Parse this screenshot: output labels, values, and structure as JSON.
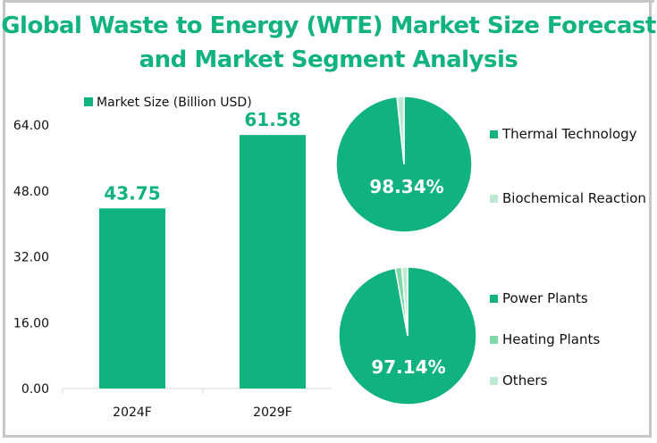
{
  "title_line1": "Global Waste to Energy (WTE) Market Size Forecast",
  "title_line2": "and Market Segment Analysis",
  "colors": {
    "primary": "#10b27f",
    "secondary": "#7fd8a8",
    "tertiary": "#bde8d2",
    "axis": "#d9d9d9",
    "border": "#c6c6c6"
  },
  "chart_data": [
    {
      "type": "bar",
      "title": "",
      "legend": "Market Size (Billion USD)",
      "legend_position": "top",
      "categories": [
        "2024F",
        "2029F"
      ],
      "values": [
        43.75,
        61.58
      ],
      "value_labels": [
        "43.75",
        "61.58"
      ],
      "ytick_labels": [
        "0.00",
        "16.00",
        "32.00",
        "48.00",
        "64.00"
      ],
      "yticks": [
        0,
        16,
        32,
        48,
        64
      ],
      "ylim": [
        0,
        64
      ],
      "xlabel": "",
      "ylabel": "",
      "grid": false
    },
    {
      "type": "pie",
      "labels": [
        "Thermal Technology",
        "Biochemical Reaction"
      ],
      "values": [
        98.34,
        1.66
      ],
      "data_label": "98.34%",
      "legend_position": "right"
    },
    {
      "type": "pie",
      "labels": [
        "Power Plants",
        "Heating Plants",
        "Others"
      ],
      "values": [
        97.14,
        1.5,
        1.36
      ],
      "data_label": "97.14%",
      "legend_position": "right"
    }
  ]
}
